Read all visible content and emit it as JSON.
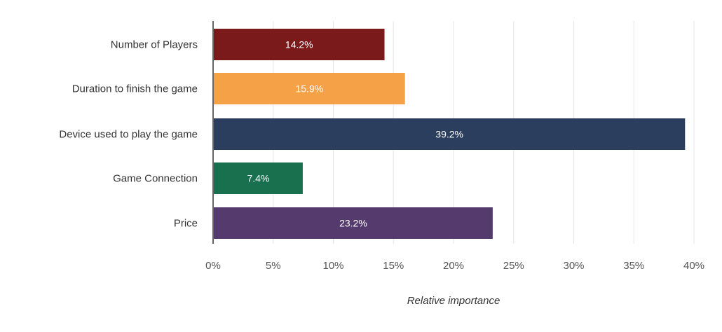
{
  "chart_data": {
    "type": "bar",
    "orientation": "horizontal",
    "categories": [
      "Number of Players",
      "Duration to finish the game",
      "Device used to play the game",
      "Game Connection",
      "Price"
    ],
    "values": [
      14.2,
      15.9,
      39.2,
      7.4,
      23.2
    ],
    "value_labels": [
      "14.2%",
      "15.9%",
      "39.2%",
      "7.4%",
      "23.2%"
    ],
    "colors": [
      "#7a1a1a",
      "#f5a147",
      "#2b3e5e",
      "#19704f",
      "#553a6e"
    ],
    "xlim": [
      0,
      40
    ],
    "x_ticks": [
      0,
      5,
      10,
      15,
      20,
      25,
      30,
      35,
      40
    ],
    "x_tick_labels": [
      "0%",
      "5%",
      "10%",
      "15%",
      "20%",
      "25%",
      "30%",
      "35%",
      "40%"
    ],
    "xlabel": "Relative importance",
    "ylabel": "",
    "title": "",
    "grid": true
  }
}
